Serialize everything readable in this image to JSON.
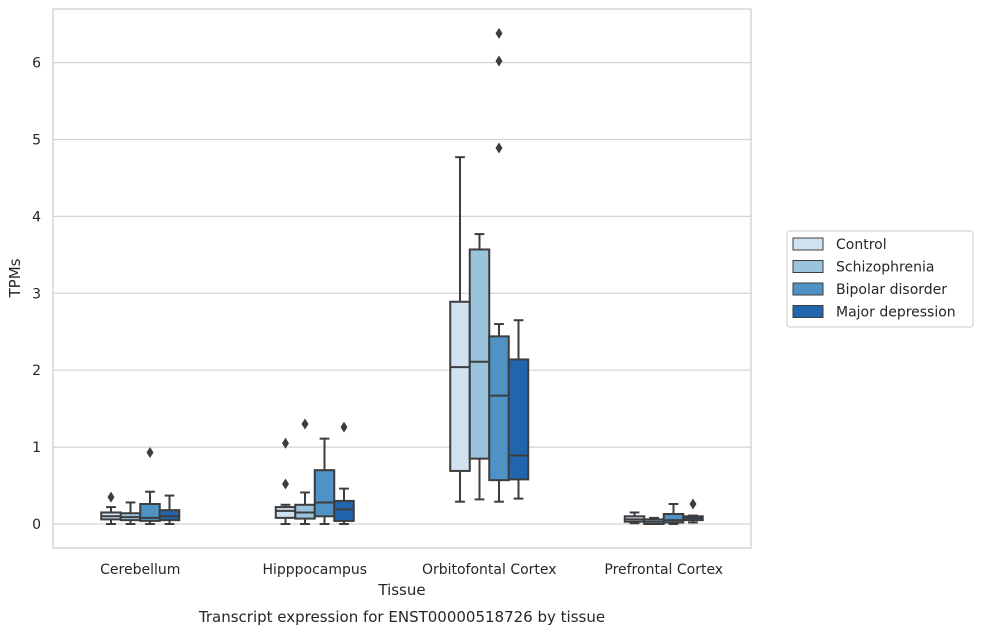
{
  "chart_data": {
    "type": "box",
    "xlabel": "Tissue",
    "ylabel": "TPMs",
    "caption": "Transcript expression for ENST00000518726 by tissue",
    "ylim": [
      -0.3,
      6.7
    ],
    "yticks": [
      0,
      1,
      2,
      3,
      4,
      5,
      6
    ],
    "grid": true,
    "legend_position": "right",
    "categories": [
      "Cerebellum",
      "Hipppocampus",
      "Orbitofontal Cortex",
      "Prefrontal Cortex"
    ],
    "series": [
      {
        "name": "Control",
        "color": "#d0e1f2",
        "boxes": [
          {
            "whislo": 0.0,
            "q1": 0.06,
            "med": 0.1,
            "q3": 0.15,
            "whishi": 0.22,
            "fliers": [
              0.35
            ]
          },
          {
            "whislo": 0.0,
            "q1": 0.08,
            "med": 0.17,
            "q3": 0.22,
            "whishi": 0.25,
            "fliers": [
              0.52,
              1.05
            ]
          },
          {
            "whislo": 0.29,
            "q1": 0.69,
            "med": 2.04,
            "q3": 2.89,
            "whishi": 4.77,
            "fliers": []
          },
          {
            "whislo": 0.01,
            "q1": 0.03,
            "med": 0.06,
            "q3": 0.1,
            "whishi": 0.15,
            "fliers": []
          }
        ]
      },
      {
        "name": "Schizophrenia",
        "color": "#9ac3de",
        "boxes": [
          {
            "whislo": 0.0,
            "q1": 0.05,
            "med": 0.09,
            "q3": 0.14,
            "whishi": 0.28,
            "fliers": []
          },
          {
            "whislo": 0.0,
            "q1": 0.07,
            "med": 0.15,
            "q3": 0.25,
            "whishi": 0.41,
            "fliers": [
              1.3
            ]
          },
          {
            "whislo": 0.32,
            "q1": 0.85,
            "med": 2.11,
            "q3": 3.57,
            "whishi": 3.77,
            "fliers": []
          },
          {
            "whislo": 0.0,
            "q1": 0.0,
            "med": 0.03,
            "q3": 0.06,
            "whishi": 0.08,
            "fliers": []
          }
        ]
      },
      {
        "name": "Bipolar disorder",
        "color": "#4f92c5",
        "boxes": [
          {
            "whislo": 0.0,
            "q1": 0.04,
            "med": 0.08,
            "q3": 0.26,
            "whishi": 0.42,
            "fliers": [
              0.93
            ]
          },
          {
            "whislo": 0.0,
            "q1": 0.1,
            "med": 0.28,
            "q3": 0.7,
            "whishi": 1.11,
            "fliers": []
          },
          {
            "whislo": 0.29,
            "q1": 0.57,
            "med": 1.67,
            "q3": 2.44,
            "whishi": 2.6,
            "fliers": [
              4.89,
              6.02,
              6.38
            ]
          },
          {
            "whislo": 0.0,
            "q1": 0.02,
            "med": 0.05,
            "q3": 0.13,
            "whishi": 0.26,
            "fliers": []
          }
        ]
      },
      {
        "name": "Major depression",
        "color": "#2166ac",
        "boxes": [
          {
            "whislo": 0.0,
            "q1": 0.05,
            "med": 0.1,
            "q3": 0.18,
            "whishi": 0.37,
            "fliers": []
          },
          {
            "whislo": 0.0,
            "q1": 0.04,
            "med": 0.19,
            "q3": 0.3,
            "whishi": 0.46,
            "fliers": [
              1.26
            ]
          },
          {
            "whislo": 0.33,
            "q1": 0.58,
            "med": 0.89,
            "q3": 2.14,
            "whishi": 2.65,
            "fliers": []
          },
          {
            "whislo": 0.02,
            "q1": 0.05,
            "med": 0.08,
            "q3": 0.1,
            "whishi": 0.11,
            "fliers": [
              0.26
            ]
          }
        ]
      }
    ]
  }
}
